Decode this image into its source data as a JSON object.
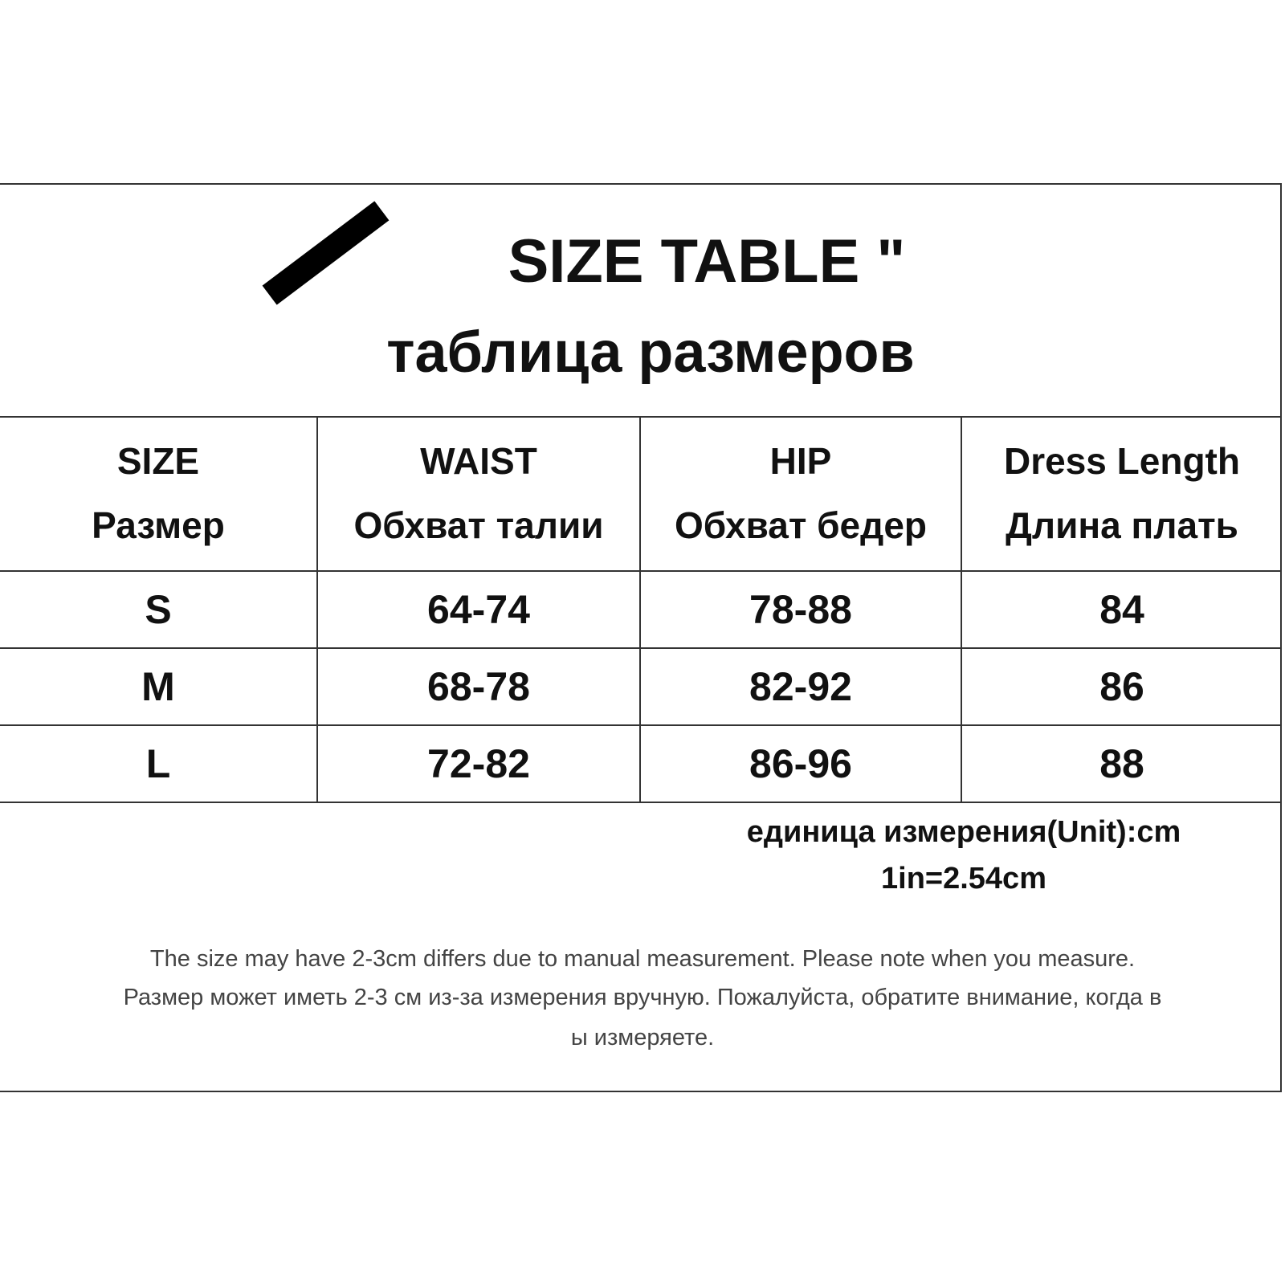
{
  "header": {
    "title": "SIZE TABLE \"",
    "subtitle": "таблица размеров"
  },
  "table": {
    "columns": [
      [
        "SIZE",
        "Размер"
      ],
      [
        "WAIST",
        "Обхват талии"
      ],
      [
        "HIP",
        "Обхват бедер"
      ],
      [
        "Dress  Length",
        "Длина  плать"
      ]
    ],
    "rows": [
      [
        "S",
        "64-74",
        "78-88",
        84
      ],
      [
        "M",
        "68-78",
        "82-92",
        86
      ],
      [
        "L",
        "72-82",
        "86-96",
        88
      ]
    ]
  },
  "unit": {
    "lines": [
      "единица измерения(Unit):cm",
      "1in=2.54cm"
    ]
  },
  "note": {
    "lines": [
      "The size may have 2-3cm differs due to manual measurement. Please note when you measure.",
      "Размер может иметь 2-3 см из-за измерения вручную. Пожалуйста, обратите внимание, когда в",
      "ы измеряете."
    ]
  }
}
